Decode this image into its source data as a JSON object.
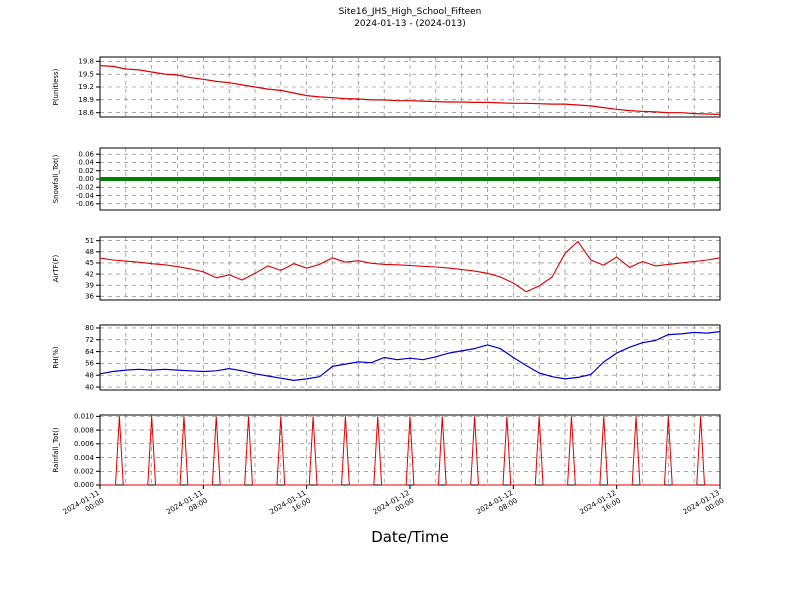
{
  "chart_data": {
    "type": "line",
    "title_line1": "Site16_JHS_High_School_Fifteen",
    "title_line2": "2024-01-13 - (2024-013)",
    "xlabel": "Date/Time",
    "x_hours_range": [
      0,
      48
    ],
    "x_grid_step_hours": 2,
    "x_tick_hours": [
      0,
      8,
      16,
      24,
      32,
      40,
      48
    ],
    "x_tick_labels": [
      [
        "2024-01-11",
        "00:00"
      ],
      [
        "2024-01-11",
        "08:00"
      ],
      [
        "2024-01-11",
        "16:00"
      ],
      [
        "2024-01-12",
        "00:00"
      ],
      [
        "2024-01-12",
        "08:00"
      ],
      [
        "2024-01-12",
        "16:00"
      ],
      [
        "2024-01-13",
        "00:00"
      ]
    ],
    "panels": [
      {
        "name": "P",
        "ylabel": "P(unitless)",
        "color": "#dd0000",
        "line_width": 1.2,
        "ylim": [
          18.5,
          19.9
        ],
        "ytick_values": [
          19.8,
          19.5,
          19.2,
          18.9,
          18.6
        ],
        "ytick_labels": [
          "19.8",
          "19.5",
          "19.2",
          "18.9",
          "18.6"
        ],
        "x_step_h": 1,
        "values": [
          19.7,
          19.68,
          19.62,
          19.6,
          19.55,
          19.5,
          19.48,
          19.42,
          19.38,
          19.33,
          19.3,
          19.25,
          19.2,
          19.15,
          19.12,
          19.06,
          19.0,
          18.97,
          18.95,
          18.93,
          18.92,
          18.9,
          18.9,
          18.88,
          18.88,
          18.87,
          18.86,
          18.85,
          18.85,
          18.84,
          18.84,
          18.83,
          18.82,
          18.82,
          18.81,
          18.8,
          18.8,
          18.78,
          18.76,
          18.72,
          18.68,
          18.65,
          18.63,
          18.62,
          18.6,
          18.6,
          18.58,
          18.57,
          18.56
        ]
      },
      {
        "name": "Snowfall_Tot",
        "ylabel": "Snowfall_Tot()",
        "color": "#007f00",
        "line_width": 4,
        "ylim": [
          -0.075,
          0.075
        ],
        "ytick_values": [
          0.06,
          0.04,
          0.02,
          0.0,
          -0.02,
          -0.04,
          -0.06
        ],
        "ytick_labels": [
          "0.06",
          "0.04",
          "0.02",
          "0.00",
          "-0.02",
          "-0.04",
          "-0.06"
        ],
        "x_step_h": 48,
        "values": [
          0.0,
          0.0
        ]
      },
      {
        "name": "AirTF",
        "ylabel": "AirTF(F)",
        "color": "#dd0000",
        "line_width": 1.1,
        "ylim": [
          35,
          52
        ],
        "ytick_values": [
          51,
          48,
          45,
          42,
          39,
          36
        ],
        "ytick_labels": [
          "51",
          "48",
          "45",
          "42",
          "39",
          "36"
        ],
        "x_step_h": 1,
        "values": [
          46.3,
          45.8,
          45.5,
          45.2,
          44.8,
          44.5,
          44.0,
          43.4,
          42.6,
          41.0,
          41.8,
          40.4,
          42.2,
          44.2,
          43.0,
          44.8,
          43.6,
          44.6,
          46.4,
          45.2,
          45.6,
          44.9,
          44.6,
          44.5,
          44.3,
          44.1,
          43.9,
          43.6,
          43.2,
          42.8,
          42.2,
          41.2,
          39.6,
          37.2,
          38.8,
          41.2,
          47.6,
          50.8,
          45.8,
          44.4,
          46.6,
          43.8,
          45.4,
          44.2,
          44.6,
          45.0,
          45.4,
          45.8,
          46.4
        ]
      },
      {
        "name": "RH",
        "ylabel": "RH(%)",
        "color": "#0000cc",
        "line_width": 1.2,
        "ylim": [
          38,
          82
        ],
        "ytick_values": [
          80,
          72,
          64,
          56,
          48,
          40
        ],
        "ytick_labels": [
          "80",
          "72",
          "64",
          "56",
          "48",
          "40"
        ],
        "x_step_h": 1,
        "values": [
          49,
          50.5,
          51.5,
          52,
          51.5,
          52,
          51.5,
          51,
          50.5,
          51,
          52.5,
          51,
          49,
          47.5,
          46,
          44.5,
          45.5,
          47,
          54,
          55.5,
          57,
          56.5,
          60,
          58.5,
          59.5,
          58.5,
          60.5,
          63,
          64.5,
          66,
          68.5,
          66,
          60,
          54.5,
          49.5,
          47,
          45.5,
          46.5,
          48.5,
          57,
          63,
          67,
          70,
          71.5,
          75.5,
          76,
          77,
          76.5,
          77.5
        ]
      },
      {
        "name": "Rainfall_Tot",
        "ylabel": "Rainfall_Tot()",
        "color": "#dd0000",
        "line_width": 1,
        "ylim": [
          0,
          0.0102
        ],
        "ytick_values": [
          0.01,
          0.008,
          0.006,
          0.004,
          0.002,
          0.0
        ],
        "ytick_labels": [
          "0.010",
          "0.008",
          "0.006",
          "0.004",
          "0.002",
          "0.000"
        ],
        "spike_times_h": [
          1.5,
          4,
          6.5,
          9,
          11.5,
          14,
          16.5,
          19,
          21.5,
          24,
          26.5,
          29,
          31.5,
          34,
          36.5,
          39,
          41.5,
          44,
          46.5
        ],
        "spike_height": 0.01,
        "spike_half_width_h": 0.3
      }
    ]
  }
}
